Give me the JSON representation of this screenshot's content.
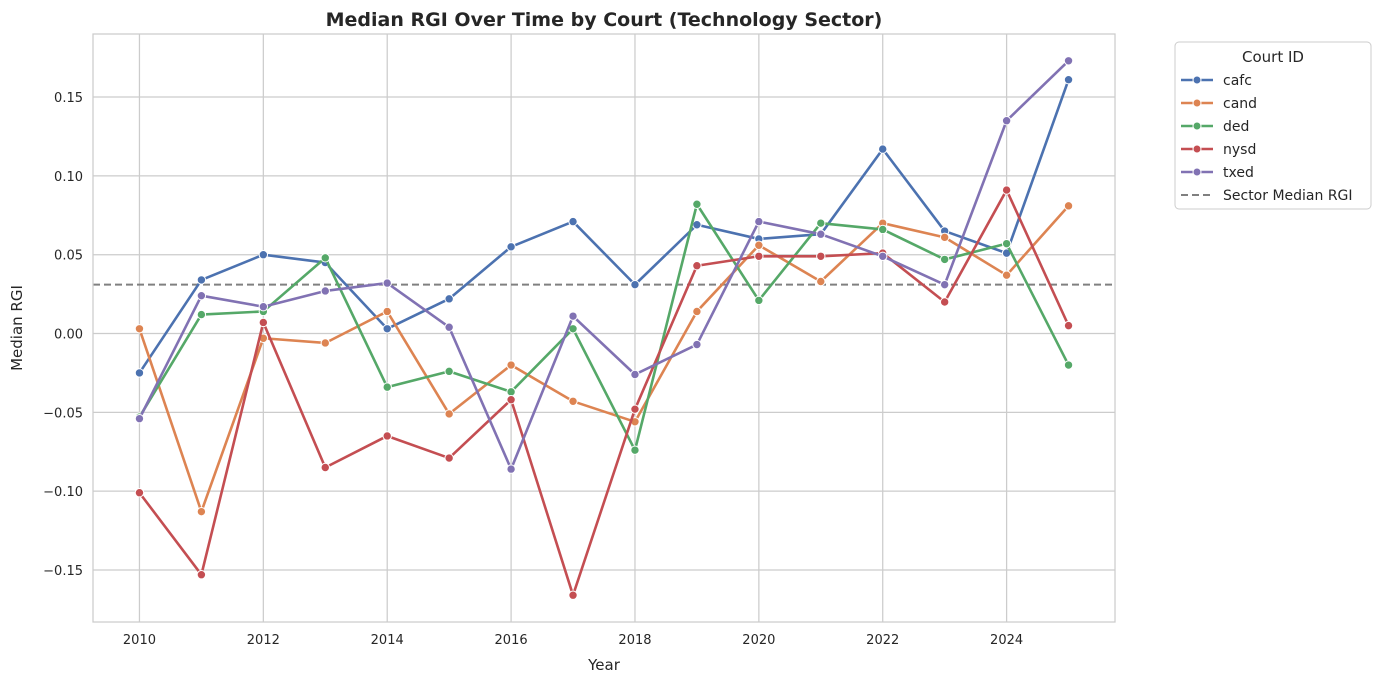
{
  "chart_data": {
    "type": "line",
    "title": "Median RGI Over Time by Court (Technology Sector)",
    "xlabel": "Year",
    "ylabel": "Median RGI",
    "x": [
      2010,
      2011,
      2012,
      2013,
      2014,
      2015,
      2016,
      2017,
      2018,
      2019,
      2020,
      2021,
      2022,
      2023,
      2024,
      2025
    ],
    "xlim": [
      2009.25,
      2025.75
    ],
    "ylim": [
      -0.183,
      0.19
    ],
    "xticks": [
      2010,
      2012,
      2014,
      2016,
      2018,
      2020,
      2022,
      2024
    ],
    "xtick_labels": [
      "2010",
      "2012",
      "2014",
      "2016",
      "2018",
      "2020",
      "2022",
      "2024"
    ],
    "yticks": [
      -0.15,
      -0.1,
      -0.05,
      0.0,
      0.05,
      0.1,
      0.15
    ],
    "ytick_labels": [
      "−0.15",
      "−0.10",
      "−0.05",
      "0.00",
      "0.05",
      "0.10",
      "0.15"
    ],
    "grid": true,
    "legend_title": "Court ID",
    "legend_position": "outside-top-right",
    "series": [
      {
        "name": "cafc",
        "color": "#4c72b0",
        "values": [
          -0.025,
          0.034,
          0.05,
          0.045,
          0.003,
          0.022,
          0.055,
          0.071,
          0.031,
          0.069,
          0.06,
          0.063,
          0.117,
          0.065,
          0.051,
          0.161
        ]
      },
      {
        "name": "cand",
        "color": "#dd8452",
        "values": [
          0.003,
          -0.113,
          -0.003,
          -0.006,
          0.014,
          -0.051,
          -0.02,
          -0.043,
          -0.056,
          0.014,
          0.056,
          0.033,
          0.07,
          0.061,
          0.037,
          0.081
        ]
      },
      {
        "name": "ded",
        "color": "#55a868",
        "values": [
          -0.053,
          0.012,
          0.014,
          0.048,
          -0.034,
          -0.024,
          -0.037,
          0.003,
          -0.074,
          0.082,
          0.021,
          0.07,
          0.066,
          0.047,
          0.057,
          -0.02
        ]
      },
      {
        "name": "nysd",
        "color": "#c44e52",
        "values": [
          -0.101,
          -0.153,
          0.007,
          -0.085,
          -0.065,
          -0.079,
          -0.042,
          -0.166,
          -0.048,
          0.043,
          0.049,
          0.049,
          0.051,
          0.02,
          0.091,
          0.005
        ]
      },
      {
        "name": "txed",
        "color": "#8172b3",
        "values": [
          -0.054,
          0.024,
          0.017,
          0.027,
          0.032,
          0.004,
          -0.086,
          0.011,
          -0.026,
          -0.007,
          0.071,
          0.063,
          0.049,
          0.031,
          0.135,
          0.173
        ]
      }
    ],
    "reference_line": {
      "name": "Sector Median RGI",
      "value": 0.031,
      "color": "#808080",
      "style": "dashed"
    }
  }
}
